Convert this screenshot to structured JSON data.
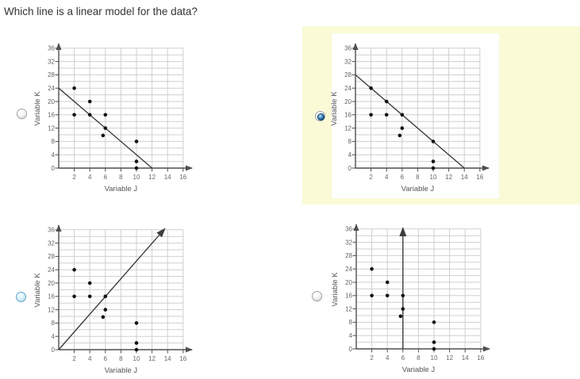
{
  "question": {
    "text": "Which line is a linear model for the data?"
  },
  "colors": {
    "grid": "#cfcfcf",
    "axis": "#4f4f4f",
    "tick_text": "#666666",
    "axis_title": "#555555",
    "point": "#141414",
    "line": "#3d3d3d",
    "highlight": "#fafad7",
    "question_text": "#333333",
    "radio_selected_blue": "#2d7ab7"
  },
  "options": [
    {
      "id": "A",
      "position": "top-left",
      "selected": false,
      "highlighted": false,
      "radio_state": "unselected"
    },
    {
      "id": "B",
      "position": "top-right",
      "selected": true,
      "highlighted": true,
      "radio_state": "selected"
    },
    {
      "id": "C",
      "position": "bottom-left",
      "selected": false,
      "highlighted": false,
      "radio_state": "hover"
    },
    {
      "id": "D",
      "position": "bottom-right",
      "selected": false,
      "highlighted": false,
      "radio_state": "unselected"
    }
  ],
  "chart_data": [
    {
      "type": "scatter",
      "option": "A",
      "xlabel": "Variable J",
      "ylabel": "Variable K",
      "x_ticks": [
        2,
        4,
        6,
        8,
        10,
        12,
        14,
        16
      ],
      "y_ticks": [
        0,
        4,
        8,
        12,
        16,
        20,
        24,
        28,
        32,
        36
      ],
      "xlim": [
        0,
        17.5
      ],
      "ylim": [
        0,
        38.5
      ],
      "grid": true,
      "grid_step": 2,
      "grid_x_max": 16,
      "grid_y_max": 36,
      "points": [
        [
          2,
          24
        ],
        [
          2,
          16
        ],
        [
          4,
          20
        ],
        [
          4,
          16
        ],
        [
          6,
          16
        ],
        [
          6,
          12
        ],
        [
          5.7,
          9.8
        ],
        [
          10,
          8
        ],
        [
          10,
          2
        ],
        [
          10,
          0
        ]
      ],
      "line": {
        "from": [
          0,
          24
        ],
        "to": [
          12,
          0
        ],
        "arrow_end": false
      }
    },
    {
      "type": "scatter",
      "option": "B",
      "xlabel": "Variable J",
      "ylabel": "Variable K",
      "x_ticks": [
        2,
        4,
        6,
        8,
        10,
        12,
        14,
        16
      ],
      "y_ticks": [
        0,
        4,
        8,
        12,
        16,
        20,
        24,
        28,
        32,
        36
      ],
      "xlim": [
        0,
        17.5
      ],
      "ylim": [
        0,
        38.5
      ],
      "grid": true,
      "grid_step": 2,
      "grid_x_max": 16,
      "grid_y_max": 36,
      "points": [
        [
          2,
          24
        ],
        [
          2,
          16
        ],
        [
          4,
          20
        ],
        [
          4,
          16
        ],
        [
          6,
          16
        ],
        [
          6,
          12
        ],
        [
          5.7,
          9.8
        ],
        [
          10,
          8
        ],
        [
          10,
          2
        ],
        [
          10,
          0
        ]
      ],
      "line": {
        "from": [
          0,
          28
        ],
        "to": [
          14,
          0
        ],
        "arrow_end": false
      }
    },
    {
      "type": "scatter",
      "option": "C",
      "xlabel": "Variable J",
      "ylabel": "Variable K",
      "x_ticks": [
        2,
        4,
        6,
        8,
        10,
        12,
        14,
        16
      ],
      "y_ticks": [
        0,
        4,
        8,
        12,
        16,
        20,
        24,
        28,
        32,
        36
      ],
      "xlim": [
        0,
        17.5
      ],
      "ylim": [
        0,
        38.5
      ],
      "grid": true,
      "grid_step": 2,
      "grid_x_max": 16,
      "grid_y_max": 36,
      "points": [
        [
          2,
          24
        ],
        [
          2,
          16
        ],
        [
          4,
          20
        ],
        [
          4,
          16
        ],
        [
          6,
          16
        ],
        [
          6,
          12
        ],
        [
          5.7,
          9.8
        ],
        [
          10,
          8
        ],
        [
          10,
          2
        ],
        [
          10,
          0
        ]
      ],
      "line": {
        "from": [
          0,
          0
        ],
        "to": [
          13.6,
          36.2
        ],
        "arrow_end": true
      }
    },
    {
      "type": "scatter",
      "option": "D",
      "xlabel": "Variable J",
      "ylabel": "Variable K",
      "x_ticks": [
        2,
        4,
        6,
        8,
        10,
        12,
        14,
        16
      ],
      "y_ticks": [
        0,
        4,
        8,
        12,
        16,
        20,
        24,
        28,
        32,
        36
      ],
      "xlim": [
        0,
        17.5
      ],
      "ylim": [
        0,
        38.5
      ],
      "grid": true,
      "grid_step": 2,
      "grid_x_max": 16,
      "grid_y_max": 36,
      "points": [
        [
          2,
          24
        ],
        [
          2,
          16
        ],
        [
          4,
          20
        ],
        [
          4,
          16
        ],
        [
          6,
          16
        ],
        [
          6,
          12
        ],
        [
          5.7,
          9.8
        ],
        [
          10,
          8
        ],
        [
          10,
          2
        ],
        [
          10,
          0
        ]
      ],
      "line": {
        "from": [
          6,
          0
        ],
        "to": [
          6,
          36.2
        ],
        "arrow_end": true
      }
    }
  ]
}
